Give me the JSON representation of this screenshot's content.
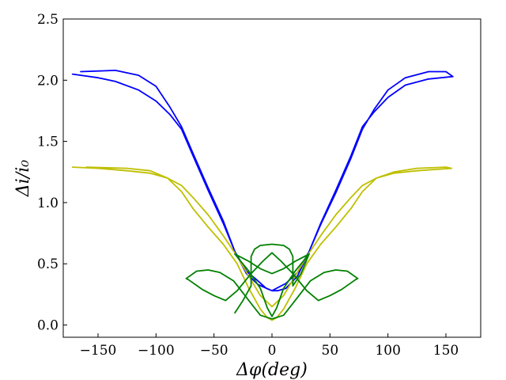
{
  "chart_data": {
    "type": "line",
    "title": "",
    "xlabel": "Δφ(deg)",
    "ylabel": "Δi/i₀",
    "xlim": [
      -180,
      180
    ],
    "ylim": [
      -0.1,
      2.5
    ],
    "xticks": [
      -150,
      -100,
      -50,
      0,
      50,
      100,
      150
    ],
    "xtick_labels": [
      "−150",
      "−100",
      "−50",
      "0",
      "50",
      "100",
      "150"
    ],
    "yticks": [
      0.0,
      0.5,
      1.0,
      1.5,
      2.0,
      2.5
    ],
    "ytick_labels": [
      "0.0",
      "0.5",
      "1.0",
      "1.5",
      "2.0",
      "2.5"
    ],
    "grid": false,
    "series": [
      {
        "color": "#0000ff",
        "x": [
          -172,
          -150,
          -135,
          -115,
          -100,
          -88,
          -78,
          -68,
          -55,
          -42,
          -32,
          -22,
          -12,
          0,
          12,
          22,
          32,
          42,
          55,
          68,
          78,
          88,
          100,
          115,
          135,
          156,
          150,
          135,
          115,
          100,
          88,
          78,
          68,
          55,
          42,
          32,
          22,
          12,
          5,
          0,
          -5,
          -12,
          -22,
          -32,
          -42,
          -55,
          -68,
          -78,
          -88,
          -100,
          -115,
          -135,
          -165
        ],
        "y": [
          2.05,
          2.02,
          1.99,
          1.92,
          1.83,
          1.72,
          1.6,
          1.38,
          1.1,
          0.83,
          0.6,
          0.42,
          0.33,
          0.28,
          0.34,
          0.43,
          0.6,
          0.83,
          1.1,
          1.38,
          1.62,
          1.74,
          1.86,
          1.96,
          2.01,
          2.03,
          2.07,
          2.07,
          2.02,
          1.92,
          1.76,
          1.6,
          1.36,
          1.08,
          0.82,
          0.6,
          0.4,
          0.3,
          0.28,
          0.28,
          0.3,
          0.36,
          0.44,
          0.6,
          0.85,
          1.12,
          1.4,
          1.62,
          1.78,
          1.95,
          2.04,
          2.08,
          2.07
        ]
      },
      {
        "color": "#bfbf00",
        "x": [
          -172,
          -150,
          -125,
          -105,
          -90,
          -78,
          -68,
          -55,
          -42,
          -30,
          -20,
          -10,
          0,
          10,
          20,
          30,
          42,
          55,
          68,
          78,
          90,
          105,
          125,
          155,
          150,
          125,
          105,
          90,
          78,
          68,
          55,
          42,
          30,
          20,
          10,
          4,
          0,
          -4,
          -10,
          -20,
          -30,
          -42,
          -55,
          -68,
          -78,
          -90,
          -105,
          -125,
          -160
        ],
        "y": [
          1.29,
          1.28,
          1.26,
          1.24,
          1.2,
          1.14,
          1.04,
          0.9,
          0.73,
          0.56,
          0.4,
          0.24,
          0.15,
          0.24,
          0.4,
          0.56,
          0.73,
          0.9,
          1.04,
          1.14,
          1.2,
          1.24,
          1.26,
          1.28,
          1.29,
          1.28,
          1.25,
          1.2,
          1.09,
          0.95,
          0.8,
          0.66,
          0.5,
          0.3,
          0.13,
          0.06,
          0.04,
          0.06,
          0.13,
          0.3,
          0.5,
          0.66,
          0.8,
          0.95,
          1.09,
          1.2,
          1.26,
          1.28,
          1.29
        ]
      },
      {
        "color": "#008000",
        "x": [
          -74,
          -65,
          -55,
          -45,
          -33,
          -20,
          -10,
          0,
          10,
          20,
          33,
          45,
          55,
          65,
          74,
          72,
          60,
          50,
          40,
          30,
          18,
          8,
          0,
          -8,
          -18,
          -30,
          -40,
          -50,
          -60,
          -72,
          -74
        ],
        "y": [
          0.38,
          0.44,
          0.45,
          0.43,
          0.36,
          0.2,
          0.08,
          0.05,
          0.08,
          0.2,
          0.36,
          0.43,
          0.45,
          0.44,
          0.38,
          0.37,
          0.29,
          0.24,
          0.2,
          0.28,
          0.42,
          0.52,
          0.59,
          0.52,
          0.42,
          0.28,
          0.2,
          0.24,
          0.29,
          0.37,
          0.38
        ]
      },
      {
        "color": "#008000",
        "x": [
          -32,
          -20,
          -10,
          0,
          10,
          20,
          32,
          25,
          18,
          18,
          15,
          10,
          0,
          -10,
          -15,
          -18,
          -18,
          -25,
          -32
        ],
        "y": [
          0.58,
          0.52,
          0.46,
          0.42,
          0.46,
          0.52,
          0.58,
          0.42,
          0.32,
          0.56,
          0.62,
          0.65,
          0.66,
          0.65,
          0.62,
          0.56,
          0.32,
          0.2,
          0.1
        ]
      },
      {
        "color": "#008000",
        "x": [
          -32,
          -20,
          -10,
          -4,
          0,
          4,
          10,
          20,
          32
        ],
        "y": [
          0.58,
          0.44,
          0.3,
          0.14,
          0.07,
          0.14,
          0.3,
          0.44,
          0.58
        ]
      }
    ]
  }
}
